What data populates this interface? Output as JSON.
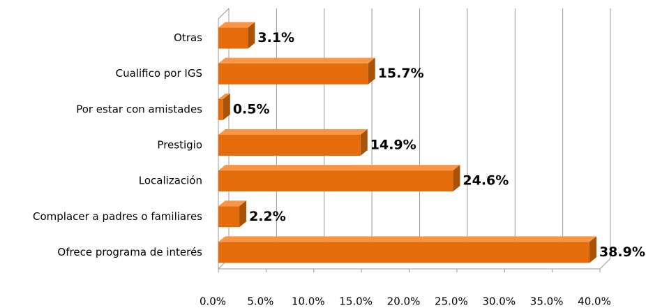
{
  "chart_data": {
    "type": "bar3d_horizontal",
    "categories": [
      "Otras",
      "Cualifico por IGS",
      "Por estar con amistades",
      "Prestigio",
      "Localización",
      "Complacer a padres o familiares",
      "Ofrece programa de interés"
    ],
    "values": [
      3.1,
      15.7,
      0.5,
      14.9,
      24.6,
      2.2,
      38.9
    ],
    "value_labels": [
      "3.1%",
      "15.7%",
      "0.5%",
      "14.9%",
      "24.6%",
      "2.2%",
      "38.9%"
    ],
    "color": "#e46c0a",
    "xlim": [
      0,
      40
    ],
    "xticks": [
      {
        "value": 0,
        "label": "0.0%"
      },
      {
        "value": 5,
        "label": "5.0%"
      },
      {
        "value": 10,
        "label": "10.0%"
      },
      {
        "value": 15,
        "label": "15.0%"
      },
      {
        "value": 20,
        "label": "20.0%"
      },
      {
        "value": 25,
        "label": "25.0%"
      },
      {
        "value": 30,
        "label": "30.0%"
      },
      {
        "value": 35,
        "label": "35.0%"
      },
      {
        "value": 40,
        "label": "40.0%"
      }
    ],
    "grid": true
  }
}
